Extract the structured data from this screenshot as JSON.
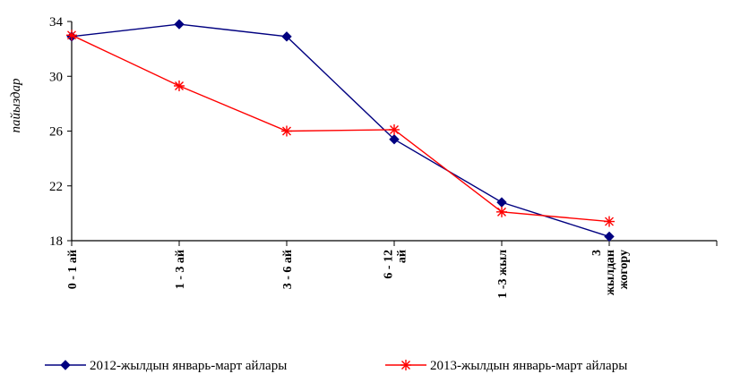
{
  "chart_data": {
    "type": "line",
    "categories": [
      [
        "0 - 1 ай"
      ],
      [
        "1 - 3 ай"
      ],
      [
        "3 - 6 ай"
      ],
      [
        "6 - 12",
        "ай"
      ],
      [
        "1 -3 жыл"
      ],
      [
        "3",
        "жылдан",
        "жогору"
      ]
    ],
    "ylabel": "пайыздар",
    "xlabel": "",
    "ylim": [
      18,
      34
    ],
    "yticks": [
      18,
      22,
      26,
      30,
      34
    ],
    "legend_position": "bottom",
    "series": [
      {
        "name": "2012-жылдын январь-март айлары",
        "color": "#000080",
        "marker": "diamond",
        "values": [
          32.9,
          33.8,
          32.9,
          25.4,
          20.8,
          18.3
        ]
      },
      {
        "name": "2013-жылдын январь-март айлары",
        "color": "#ff0000",
        "marker": "star",
        "values": [
          33.0,
          29.3,
          26.0,
          26.1,
          20.1,
          19.4
        ]
      }
    ]
  }
}
